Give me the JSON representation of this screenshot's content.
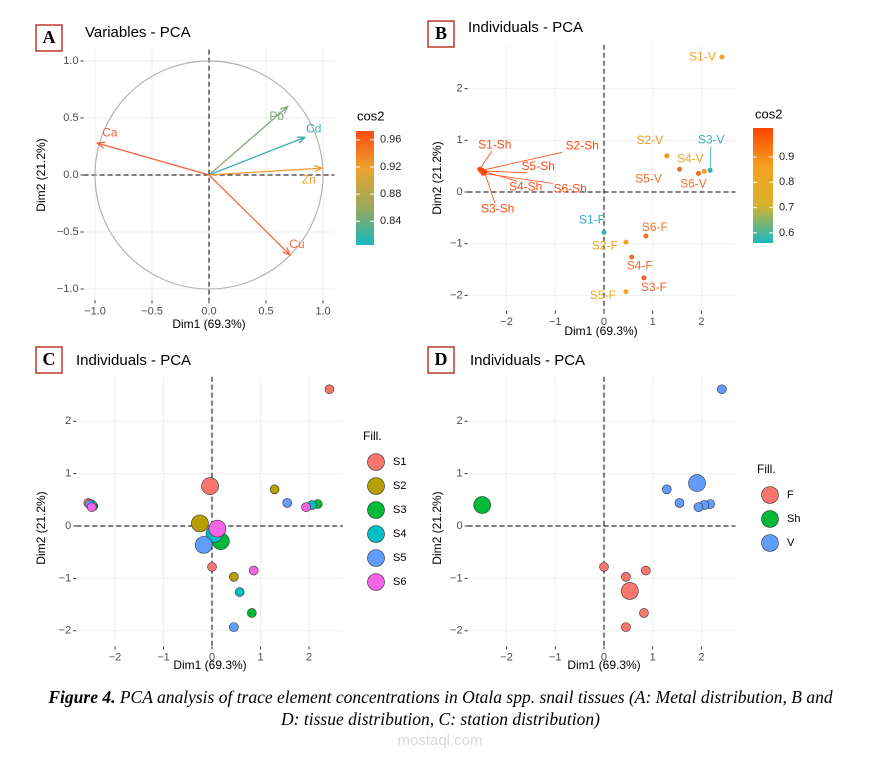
{
  "chart_data": [
    {
      "type": "pca-variables",
      "panel": "A",
      "title": "Variables - PCA",
      "x_label": "Dim1 (69.3%)",
      "y_label": "Dim2 (21.2%)",
      "xlim": [
        -1.1,
        1.1
      ],
      "ylim": [
        -1.1,
        1.1
      ],
      "xticks": [
        {
          "value": -1,
          "label": "−1.0"
        },
        {
          "value": -0.5,
          "label": "−0.5"
        },
        {
          "value": 0,
          "label": "0.0"
        },
        0.5,
        {
          "value": 1,
          "label": "1.0"
        }
      ],
      "yticks": [
        {
          "value": -1,
          "label": "−1.0"
        },
        {
          "value": -0.5,
          "label": "−0.5"
        },
        {
          "value": 0,
          "label": "0.0"
        },
        0.5,
        {
          "value": 1,
          "label": "1.0"
        }
      ],
      "grid": true,
      "variables": [
        "Ca",
        "Pb",
        "Cd",
        "Zn",
        "Cu"
      ],
      "x": [
        -0.98,
        0.69,
        0.84,
        0.99,
        0.71
      ],
      "y": [
        0.28,
        0.6,
        0.33,
        0.06,
        -0.7
      ],
      "colors": [
        "#f4623a",
        "#84a87a",
        "#3aaeb6",
        "#f39a30",
        "#f26a36"
      ],
      "colorbar": {
        "title": "cos2",
        "lim": [
          0.805,
          0.973
        ],
        "ticks": [
          0.84,
          0.88,
          0.92,
          0.96
        ],
        "colors": [
          "#18b8be",
          "#9aa85c",
          "#eaa42e",
          "#ff4a10"
        ]
      }
    },
    {
      "type": "pca-individuals",
      "panel": "B",
      "title": "Individuals - PCA",
      "x_label": "Dim1 (69.3%)",
      "y_label": "Dim2 (21.2%)",
      "xlim": [
        -2.8,
        2.7
      ],
      "ylim": [
        -2.3,
        2.85
      ],
      "xticks": [
        {
          "value": -2,
          "label": "−2"
        },
        {
          "value": -1,
          "label": "−1"
        },
        0,
        1,
        2
      ],
      "yticks": [
        {
          "value": -2,
          "label": "−2"
        },
        {
          "value": -1,
          "label": "−1"
        },
        0,
        1,
        2
      ],
      "grid": true,
      "labels": [
        "S1-V",
        "S2-V",
        "S3-V",
        "S4-V",
        "S5-V",
        "S6-V",
        "S1-Sh",
        "S2-Sh",
        "S3-Sh",
        "S4-Sh",
        "S5-Sh",
        "S6-Sh",
        "S1-F",
        "S2-F",
        "S3-F",
        "S4-F",
        "S5-F",
        "S6-F"
      ],
      "x": [
        2.42,
        1.29,
        2.18,
        2.06,
        1.55,
        1.94,
        -2.55,
        -2.5,
        -2.45,
        -2.47,
        -2.52,
        -2.48,
        0,
        0.45,
        0.82,
        0.57,
        0.45,
        0.86
      ],
      "y": [
        2.61,
        0.7,
        0.42,
        0.4,
        0.44,
        0.36,
        0.44,
        0.42,
        0.38,
        0.4,
        0.41,
        0.36,
        -0.78,
        -0.97,
        -1.66,
        -1.26,
        -1.93,
        -0.85
      ],
      "colors": [
        "#f2a21e",
        "#f0941c",
        "#3aafb2",
        "#f2a020",
        "#f26a2a",
        "#f2702a",
        "#ff4a10",
        "#ff4a10",
        "#ff4a10",
        "#ff4a10",
        "#ff4a10",
        "#ff4a10",
        "#2bafba",
        "#f0a020",
        "#f0642a",
        "#f06a28",
        "#f2a820",
        "#f0702a"
      ],
      "colorbar": {
        "title": "cos2",
        "lim": [
          0.56,
          1.015
        ],
        "ticks": [
          0.6,
          0.7,
          0.8,
          0.9
        ],
        "colors": [
          "#18b8c0",
          "#d9b22a",
          "#f5a020",
          "#ff4500"
        ]
      }
    },
    {
      "type": "pca-groups",
      "panel": "C",
      "title": "Individuals - PCA",
      "x_label": "Dim1 (69.3%)",
      "y_label": "Dim2 (21.2%)",
      "xlim": [
        -2.8,
        2.7
      ],
      "ylim": [
        -2.3,
        2.85
      ],
      "xticks": [
        {
          "value": -2,
          "label": "−2"
        },
        {
          "value": -1,
          "label": "−1"
        },
        0,
        1,
        2
      ],
      "yticks": [
        {
          "value": -2,
          "label": "−2"
        },
        {
          "value": -1,
          "label": "−1"
        },
        0,
        1,
        2
      ],
      "grid": true,
      "legend_title": "Fill.",
      "series": [
        {
          "name": "S1",
          "color": "#f8766d",
          "x": [
            2.42,
            -2.55,
            0
          ],
          "y": [
            2.61,
            0.44,
            -0.78
          ],
          "centroid_x": -0.04,
          "centroid_y": 0.76
        },
        {
          "name": "S2",
          "color": "#b79f00",
          "x": [
            1.29,
            -2.5,
            0.45
          ],
          "y": [
            0.7,
            0.42,
            -0.97
          ],
          "centroid_x": -0.25,
          "centroid_y": 0.05
        },
        {
          "name": "S3",
          "color": "#00ba38",
          "x": [
            2.18,
            -2.45,
            0.82
          ],
          "y": [
            0.42,
            0.38,
            -1.66
          ],
          "centroid_x": 0.18,
          "centroid_y": -0.29
        },
        {
          "name": "S4",
          "color": "#00bfc4",
          "x": [
            2.06,
            -2.47,
            0.57
          ],
          "y": [
            0.4,
            0.4,
            -1.26
          ],
          "centroid_x": 0.05,
          "centroid_y": -0.15
        },
        {
          "name": "S5",
          "color": "#619cff",
          "x": [
            1.55,
            -2.52,
            0.45
          ],
          "y": [
            0.44,
            0.41,
            -1.93
          ],
          "centroid_x": -0.17,
          "centroid_y": -0.36
        },
        {
          "name": "S6",
          "color": "#f564e3",
          "x": [
            1.94,
            -2.48,
            0.86
          ],
          "y": [
            0.36,
            0.36,
            -0.85
          ],
          "centroid_x": 0.11,
          "centroid_y": -0.05
        }
      ]
    },
    {
      "type": "pca-groups",
      "panel": "D",
      "title": "Individuals - PCA",
      "x_label": "Dim1 (69.3%)",
      "y_label": "Dim2 (21.2%)",
      "xlim": [
        -2.8,
        2.7
      ],
      "ylim": [
        -2.3,
        2.85
      ],
      "xticks": [
        {
          "value": -2,
          "label": "−2"
        },
        {
          "value": -1,
          "label": "−1"
        },
        0,
        1,
        2
      ],
      "yticks": [
        {
          "value": -2,
          "label": "−2"
        },
        {
          "value": -1,
          "label": "−1"
        },
        0,
        1,
        2
      ],
      "grid": true,
      "legend_title": "Fill.",
      "series": [
        {
          "name": "F",
          "color": "#f8766d",
          "x": [
            0,
            0.45,
            0.82,
            0.57,
            0.45,
            0.86
          ],
          "y": [
            -0.78,
            -0.97,
            -1.66,
            -1.26,
            -1.93,
            -0.85
          ],
          "centroid_x": 0.53,
          "centroid_y": -1.24
        },
        {
          "name": "Sh",
          "color": "#00ba38",
          "x": [
            -2.55,
            -2.5,
            -2.45,
            -2.47,
            -2.52,
            -2.48
          ],
          "y": [
            0.44,
            0.42,
            0.38,
            0.4,
            0.41,
            0.36
          ],
          "centroid_x": -2.5,
          "centroid_y": 0.4
        },
        {
          "name": "V",
          "color": "#619cff",
          "x": [
            2.42,
            1.29,
            2.18,
            2.06,
            1.55,
            1.94
          ],
          "y": [
            2.61,
            0.7,
            0.42,
            0.4,
            0.44,
            0.36
          ],
          "centroid_x": 1.91,
          "centroid_y": 0.82
        }
      ]
    }
  ],
  "caption": {
    "label": "Figure 4.",
    "text": "PCA analysis of trace element concentrations in Otala spp. snail tissues (A: Metal distribution, B and D: tissue distribution, C: station distribution)"
  },
  "watermark": "mostaql.com"
}
